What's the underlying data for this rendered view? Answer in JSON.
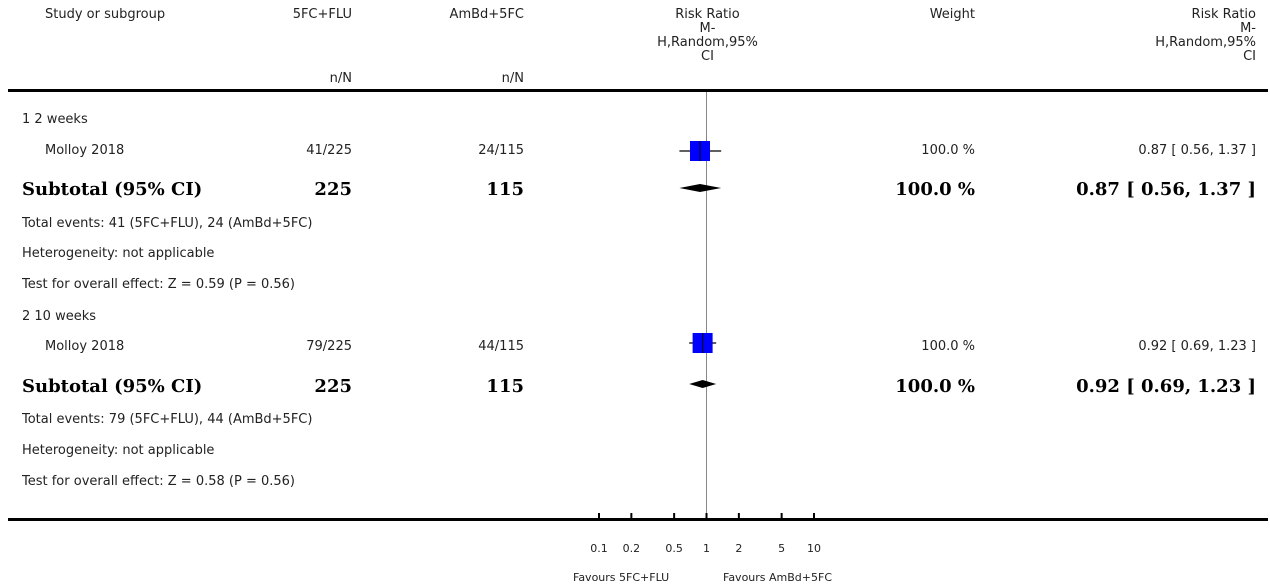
{
  "header": {
    "study_col": "Study or subgroup",
    "group1": "5FC+FLU",
    "group2": "AmBd+5FC",
    "nN": "n/N",
    "effect_title": "Risk Ratio",
    "effect_method_l1": "M-",
    "effect_method_l2": "H,Random,95%",
    "effect_method_l3": "CI",
    "weight": "Weight",
    "rr_title": "Risk Ratio",
    "rr_method_l1": "M-",
    "rr_method_l2": "H,Random,95%",
    "rr_method_l3": "CI"
  },
  "groups": [
    {
      "title": "1 2 weeks",
      "study": {
        "name": "Molloy 2018",
        "g1": "41/225",
        "g2": "24/115",
        "weight": "100.0 %",
        "ci": "0.87 [ 0.56, 1.37 ]"
      },
      "subtotal": {
        "label": "Subtotal (95% CI)",
        "n1": "225",
        "n2": "115",
        "weight": "100.0 %",
        "ci": "0.87 [ 0.56, 1.37 ]"
      },
      "events": "Total events: 41 (5FC+FLU), 24 (AmBd+5FC)",
      "heterogeneity": "Heterogeneity: not applicable",
      "overall": "Test for overall effect: Z = 0.59 (P = 0.56)"
    },
    {
      "title": "2 10 weeks",
      "study": {
        "name": "Molloy 2018",
        "g1": "79/225",
        "g2": "44/115",
        "weight": "100.0 %",
        "ci": "0.92 [ 0.69, 1.23 ]"
      },
      "subtotal": {
        "label": "Subtotal (95% CI)",
        "n1": "225",
        "n2": "115",
        "weight": "100.0 %",
        "ci": "0.92 [ 0.69, 1.23 ]"
      },
      "events": "Total events: 79 (5FC+FLU), 44 (AmBd+5FC)",
      "heterogeneity": "Heterogeneity: not applicable",
      "overall": "Test for overall effect: Z = 0.58 (P = 0.56)"
    }
  ],
  "axis": {
    "ticks": [
      {
        "value": 0.1,
        "label": "0.1"
      },
      {
        "value": 0.2,
        "label": "0.2"
      },
      {
        "value": 0.5,
        "label": "0.5"
      },
      {
        "value": 1,
        "label": "1"
      },
      {
        "value": 2,
        "label": "2"
      },
      {
        "value": 5,
        "label": "5"
      },
      {
        "value": 10,
        "label": "10"
      }
    ],
    "favours_left": "Favours 5FC+FLU",
    "favours_right": "Favours AmBd+5FC"
  },
  "chart_data": {
    "type": "forest",
    "scale": "log",
    "xlim": [
      0.1,
      10
    ],
    "null_line": 1,
    "colors": {
      "study_box": "#0000ff",
      "diamond": "#000000",
      "axis": "#000000"
    },
    "rows": [
      {
        "role": "study",
        "label": "Molloy 2018",
        "group": "1 2 weeks",
        "rr": 0.87,
        "lower": 0.56,
        "upper": 1.37,
        "weight": 100.0
      },
      {
        "role": "subtotal",
        "label": "Subtotal (95% CI)",
        "group": "1 2 weeks",
        "rr": 0.87,
        "lower": 0.56,
        "upper": 1.37
      },
      {
        "role": "study",
        "label": "Molloy 2018",
        "group": "2 10 weeks",
        "rr": 0.92,
        "lower": 0.69,
        "upper": 1.23,
        "weight": 100.0
      },
      {
        "role": "subtotal",
        "label": "Subtotal (95% CI)",
        "group": "2 10 weeks",
        "rr": 0.92,
        "lower": 0.69,
        "upper": 1.23
      }
    ]
  }
}
